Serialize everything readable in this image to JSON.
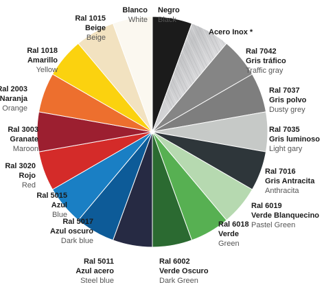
{
  "chart_data": {
    "type": "pie",
    "start_angle_deg": 0,
    "direction": "clockwise",
    "slices": [
      {
        "lines": [
          "Negro"
        ],
        "en": "Black",
        "color": "#1b1b1b",
        "value": 1
      },
      {
        "lines": [
          "Acero Inox *"
        ],
        "en": "",
        "color": "#cfcfd1",
        "value": 1,
        "texture": "brushed-steel"
      },
      {
        "lines": [
          "Ral 7042",
          "Gris tráfico"
        ],
        "en": "Traffic gray",
        "color": "#858585",
        "value": 1
      },
      {
        "lines": [
          "Ral 7037",
          "Gris polvo"
        ],
        "en": "Dusty grey",
        "color": "#7e7e7e",
        "value": 1
      },
      {
        "lines": [
          "Ral 7035",
          "Gris luminoso"
        ],
        "en": "Light gary",
        "color": "#c6c9c7",
        "value": 1
      },
      {
        "lines": [
          "Ral 7016",
          "Gris Antracita"
        ],
        "en": "Anthracita",
        "color": "#2e363a",
        "value": 1
      },
      {
        "lines": [
          "Ral 6019",
          "Verde Blanquecino"
        ],
        "en": "Pastel Green",
        "color": "#b6d9b0",
        "value": 1
      },
      {
        "lines": [
          "Ral 6018",
          "Verde"
        ],
        "en": "Green",
        "color": "#57b052",
        "value": 1
      },
      {
        "lines": [
          "Ral 6002",
          "Verde Oscuro"
        ],
        "en": "Dark Green",
        "color": "#2b6a31",
        "value": 1
      },
      {
        "lines": [
          "Ral 5011",
          "Azul acero"
        ],
        "en": "Steel blue",
        "color": "#262a43",
        "value": 1
      },
      {
        "lines": [
          "Ral 5017",
          "Azul oscuro"
        ],
        "en": "Dark blue",
        "color": "#0d5b98",
        "value": 1
      },
      {
        "lines": [
          "Ral 5015",
          "Azul"
        ],
        "en": "Blue",
        "color": "#1a7fc4",
        "value": 1
      },
      {
        "lines": [
          "Ral 3020",
          "Rojo"
        ],
        "en": "Red",
        "color": "#d42b29",
        "value": 1
      },
      {
        "lines": [
          "Ral 3003",
          "Granate"
        ],
        "en": "Maroon",
        "color": "#9c1f30",
        "value": 1
      },
      {
        "lines": [
          "Ral 2003",
          "Naranja"
        ],
        "en": "Orange",
        "color": "#ed6f2e",
        "value": 1
      },
      {
        "lines": [
          "Ral 1018",
          "Amarillo"
        ],
        "en": "Yellow",
        "color": "#fbd20f",
        "value": 1
      },
      {
        "lines": [
          "Ral 1015",
          "Beige"
        ],
        "en": "Beige",
        "color": "#f2e2c0",
        "value": 1
      },
      {
        "lines": [
          "Blanco"
        ],
        "en": "White",
        "color": "#fbf8f0",
        "value": 1
      }
    ]
  }
}
